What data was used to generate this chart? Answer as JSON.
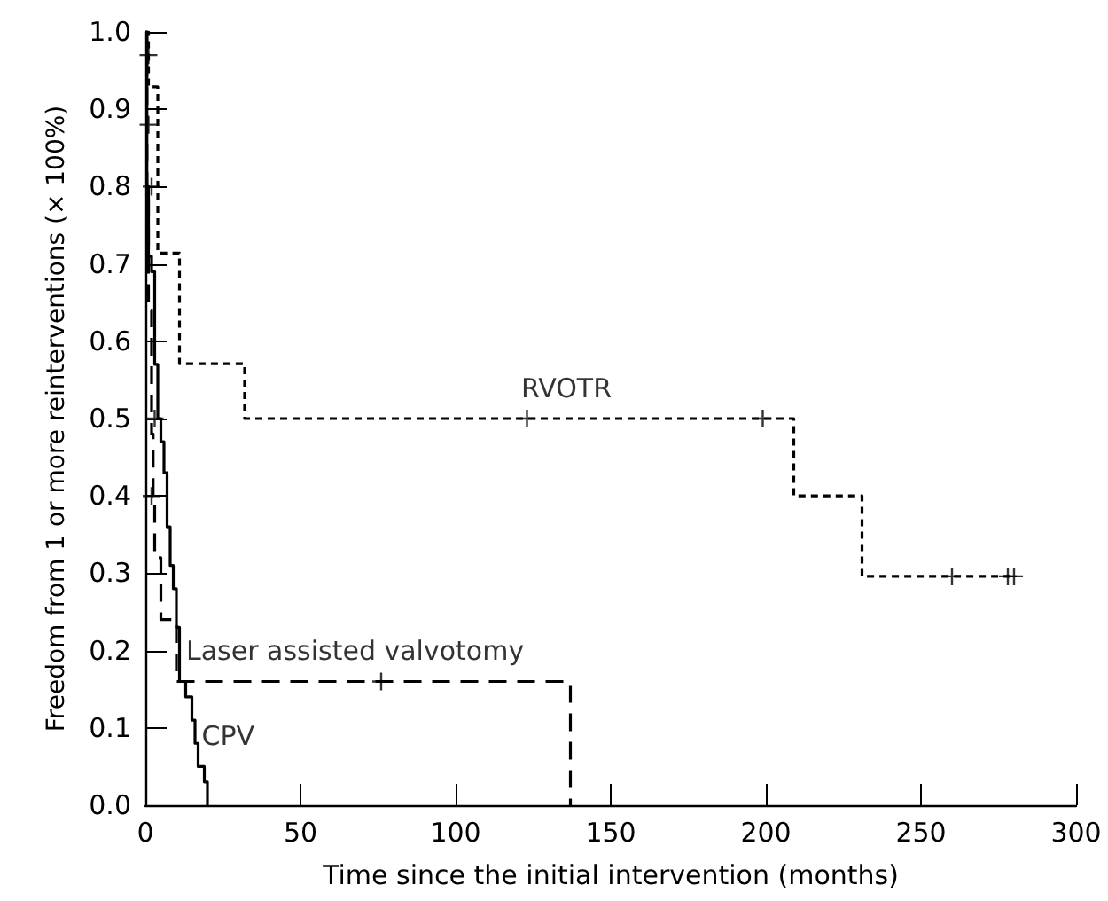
{
  "chart_data": {
    "type": "step",
    "xlabel": "Time since the initial intervention (months)",
    "ylabel": "Freedom from 1 or more reinterventions (× 100%)",
    "xlim": [
      0,
      300
    ],
    "xticks": [
      0,
      50,
      100,
      150,
      200,
      250,
      300
    ],
    "ylim": [
      0,
      1
    ],
    "yticks": [
      {
        "value": 0,
        "label": "0.0"
      },
      {
        "value": 0.1,
        "label": "0.1"
      },
      {
        "value": 0.2,
        "label": "0.2"
      },
      {
        "value": 0.3,
        "label": "0.3"
      },
      {
        "value": 0.4,
        "label": "0.4"
      },
      {
        "value": 0.5,
        "label": "0.5"
      },
      {
        "value": 0.6,
        "label": "0.6"
      },
      {
        "value": 0.7,
        "label": "0.7"
      },
      {
        "value": 0.8,
        "label": "0.8"
      },
      {
        "value": 0.9,
        "label": "0.9"
      },
      {
        "value": 1,
        "label": "1.0"
      }
    ],
    "grid": false,
    "series": [
      {
        "color": "#000000",
        "line_style": "dotted",
        "x": [
          0,
          1,
          4,
          11,
          32,
          209,
          231,
          280
        ],
        "values": [
          1.0,
          0.929,
          0.714,
          0.571,
          0.5,
          0.4,
          0.296,
          0.296
        ]
      },
      {
        "color": "#000000",
        "line_style": "dashed",
        "x": [
          0,
          0.5,
          1,
          2,
          2.5,
          3,
          5,
          10,
          137
        ],
        "values": [
          1.0,
          0.8,
          0.64,
          0.48,
          0.4,
          0.32,
          0.24,
          0.16,
          0
        ]
      },
      {
        "color": "#000000",
        "line_style": "solid",
        "x": [
          0,
          0.5,
          1,
          2,
          3,
          4,
          5,
          6,
          7,
          8,
          9,
          10,
          11,
          13,
          15,
          16,
          17,
          19,
          20
        ],
        "values": [
          1.0,
          0.8,
          0.71,
          0.69,
          0.57,
          0.5,
          0.47,
          0.43,
          0.36,
          0.31,
          0.28,
          0.23,
          0.16,
          0.14,
          0.11,
          0.08,
          0.05,
          0.03,
          0
        ]
      },
      {
        "type": "scatter",
        "marker": "cross",
        "color": "#000000",
        "x": [
          123,
          199,
          260,
          278,
          280,
          76,
          1,
          1,
          2,
          3,
          2
        ],
        "values": [
          0.5,
          0.5,
          0.296,
          0.296,
          0.296,
          0.16,
          0.97,
          0.88,
          0.8,
          0.5,
          0.4
        ]
      }
    ],
    "annotations": [
      {
        "text": "RVOTR",
        "x": 120,
        "y": 0.5
      },
      {
        "text": "Laser assisted valvotomy",
        "x": 12,
        "y": 0.16
      },
      {
        "text": "CPV",
        "x": 17,
        "y": 0.05
      }
    ]
  }
}
